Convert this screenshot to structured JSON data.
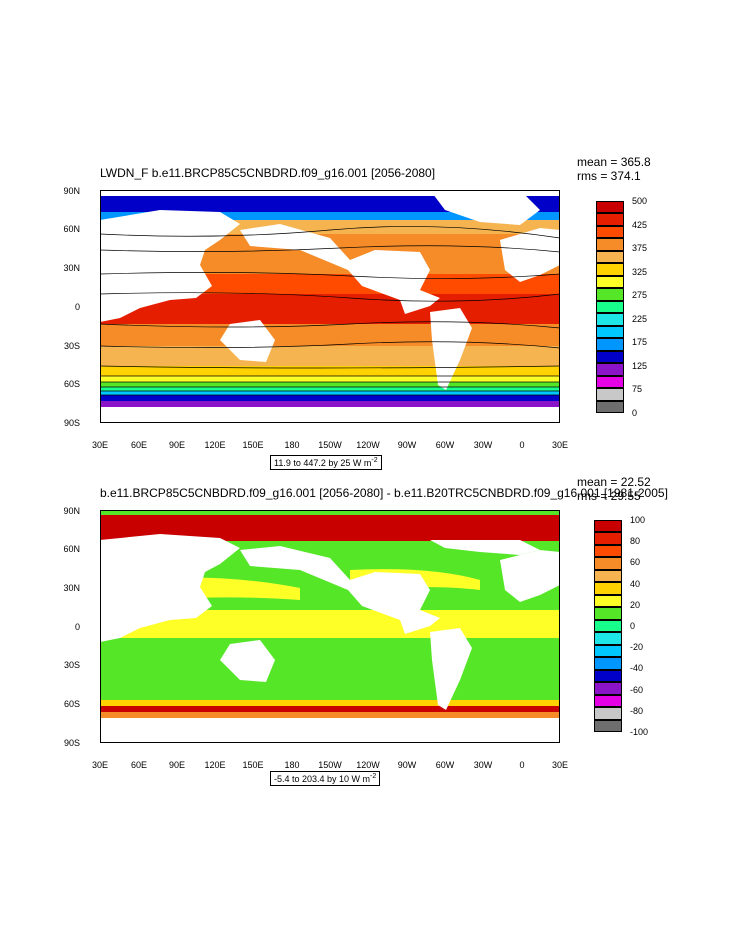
{
  "panels": [
    {
      "title": "LWDN_F b.e11.BRCP85C5CNBDRD.f09_g16.001 [2056-2080]",
      "mean": "mean = 365.8",
      "rms": "rms = 374.1",
      "range": "11.9 to 447.2 by 25  W m",
      "range_sup": "-2",
      "colorbar_labels": [
        "500",
        "425",
        "375",
        "325",
        "275",
        "225",
        "175",
        "125",
        "75",
        "0"
      ],
      "colorbar_colors": [
        "#c80000",
        "#e61e00",
        "#ff4b00",
        "#f58c28",
        "#f5b450",
        "#ffd200",
        "#ffff28",
        "#55e628",
        "#18ff8c",
        "#1ee6e6",
        "#00c8ff",
        "#0096ff",
        "#0000c8",
        "#8c14c8",
        "#e600e6",
        "#c8c8c8",
        "#6e6e6e"
      ]
    },
    {
      "title": "b.e11.BRCP85C5CNBDRD.f09_g16.001 [2056-2080] - b.e11.B20TRC5CNBDRD.f09_g16.001 [1981-2005]",
      "mean": "mean = 22.52",
      "rms": "rms = 29.55",
      "range": "-5.4 to 203.4 by 10  W m",
      "range_sup": "-2",
      "colorbar_labels": [
        "100",
        "80",
        "60",
        "40",
        "20",
        "0",
        "-20",
        "-40",
        "-60",
        "-80",
        "-100"
      ],
      "colorbar_colors": [
        "#c80000",
        "#e61e00",
        "#ff4b00",
        "#f58c28",
        "#f5b450",
        "#ffd200",
        "#ffff28",
        "#55e628",
        "#18ff8c",
        "#1ee6e6",
        "#00c8ff",
        "#0096ff",
        "#0000c8",
        "#8c14c8",
        "#e600e6",
        "#c8c8c8",
        "#6e6e6e"
      ]
    }
  ],
  "axes": {
    "lat_labels": [
      "90N",
      "60N",
      "30N",
      "0",
      "30S",
      "60S",
      "90S"
    ],
    "lon_labels": [
      "30E",
      "60E",
      "90E",
      "120E",
      "150E",
      "180",
      "150W",
      "120W",
      "90W",
      "60W",
      "30W",
      "0",
      "30E"
    ]
  }
}
